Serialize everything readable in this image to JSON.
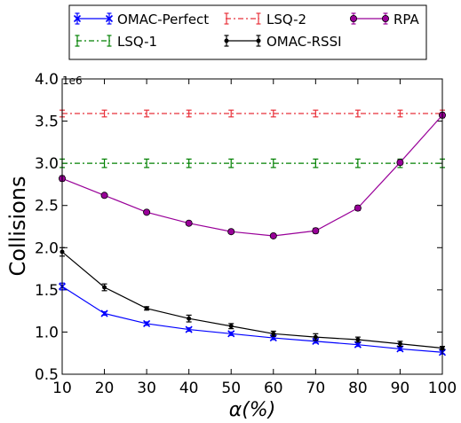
{
  "chart_data": {
    "type": "line",
    "xlabel": "α(%)",
    "ylabel": "Collisions",
    "scale_label": "1e6",
    "xlim": [
      10,
      100
    ],
    "ylim": [
      0.5,
      4.0
    ],
    "x": [
      10,
      20,
      30,
      40,
      50,
      60,
      70,
      80,
      90,
      100
    ],
    "x_ticks": [
      "10",
      "20",
      "30",
      "40",
      "50",
      "60",
      "70",
      "80",
      "90",
      "100"
    ],
    "y_ticks": [
      "0.5",
      "1.0",
      "1.5",
      "2.0",
      "2.5",
      "3.0",
      "3.5",
      "4.0"
    ],
    "grid": false,
    "legend_position": "top, outside plot",
    "series": [
      {
        "name": "OMAC-Perfect",
        "color": "#0000ff",
        "marker": "x",
        "linestyle": "solid",
        "values": [
          1.54,
          1.22,
          1.1,
          1.03,
          0.98,
          0.93,
          0.89,
          0.85,
          0.8,
          0.76
        ],
        "errors": [
          0.04,
          0.02,
          0.02,
          0.02,
          0.02,
          0.02,
          0.02,
          0.02,
          0.02,
          0.02
        ]
      },
      {
        "name": "LSQ-1",
        "color": "#008000",
        "marker": "none",
        "linestyle": "dashdot",
        "values": [
          3.0,
          3.0,
          3.0,
          3.0,
          3.0,
          3.0,
          3.0,
          3.0,
          3.0,
          3.0
        ],
        "errors": [
          0.05,
          0.05,
          0.05,
          0.05,
          0.05,
          0.05,
          0.05,
          0.05,
          0.05,
          0.05
        ]
      },
      {
        "name": "LSQ-2",
        "color": "#e8313a",
        "marker": "none",
        "linestyle": "dashdot",
        "values": [
          3.59,
          3.59,
          3.59,
          3.59,
          3.59,
          3.59,
          3.59,
          3.59,
          3.59,
          3.59
        ],
        "errors": [
          0.04,
          0.04,
          0.04,
          0.04,
          0.04,
          0.04,
          0.04,
          0.04,
          0.04,
          0.04
        ]
      },
      {
        "name": "OMAC-RSSI",
        "color": "#000000",
        "marker": "dot",
        "linestyle": "solid",
        "values": [
          1.95,
          1.53,
          1.28,
          1.16,
          1.07,
          0.98,
          0.94,
          0.91,
          0.86,
          0.81
        ],
        "errors": [
          0.05,
          0.04,
          0.02,
          0.04,
          0.03,
          0.03,
          0.04,
          0.03,
          0.03,
          0.02
        ]
      },
      {
        "name": "RPA",
        "color": "#990099",
        "marker": "circle",
        "linestyle": "solid",
        "values": [
          2.82,
          2.62,
          2.42,
          2.29,
          2.19,
          2.14,
          2.2,
          2.47,
          3.01,
          3.57
        ],
        "errors": [
          0.03,
          0.02,
          0.02,
          0.02,
          0.02,
          0.02,
          0.03,
          0.03,
          0.03,
          0.03
        ]
      }
    ]
  }
}
